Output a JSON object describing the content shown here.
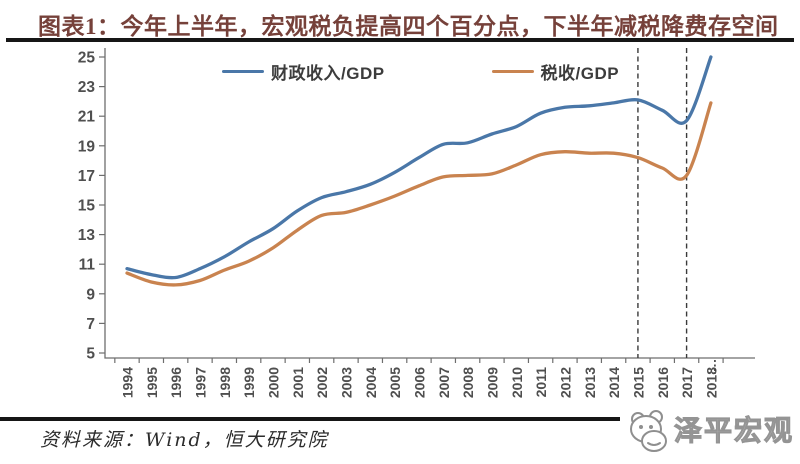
{
  "header": {
    "title": "图表1：今年上半年，宏观税负提高四个百分点，下半年减税降费存空间"
  },
  "footer": {
    "source": "资料来源：Wind，恒大研究院",
    "watermark": "泽平宏观"
  },
  "chart_data": {
    "type": "line",
    "title": "图表1：今年上半年，宏观税负提高四个百分点，下半年减税降费存空间",
    "x": [
      "1994",
      "1995",
      "1996",
      "1997",
      "1998",
      "1999",
      "2000",
      "2001",
      "2002",
      "2003",
      "2004",
      "2005",
      "2006",
      "2007",
      "2008",
      "2009",
      "2010",
      "2011",
      "2012",
      "2013",
      "2014",
      "2015",
      "2016",
      "2017",
      "2018"
    ],
    "series": [
      {
        "name": "财政收入/GDP",
        "color": "#4a77a8",
        "values": [
          10.7,
          10.3,
          10.1,
          10.7,
          11.5,
          12.5,
          13.4,
          14.6,
          15.5,
          15.9,
          16.4,
          17.2,
          18.2,
          19.1,
          19.2,
          19.8,
          20.3,
          21.2,
          21.6,
          21.7,
          21.9,
          22.1,
          21.4,
          20.7,
          25.0
        ]
      },
      {
        "name": "税收/GDP",
        "color": "#c9834f",
        "values": [
          10.4,
          9.8,
          9.6,
          9.9,
          10.6,
          11.2,
          12.1,
          13.3,
          14.3,
          14.5,
          15.0,
          15.6,
          16.3,
          16.9,
          17.0,
          17.1,
          17.7,
          18.4,
          18.6,
          18.5,
          18.5,
          18.2,
          17.5,
          17.0,
          21.9
        ]
      }
    ],
    "xlabel": "",
    "ylabel": "",
    "ylim": [
      5,
      25
    ],
    "yticks": [
      5,
      7,
      9,
      11,
      13,
      15,
      17,
      19,
      21,
      23,
      25
    ],
    "grid": false,
    "legend_position": "top",
    "annotations": {
      "dashed_vlines_x": [
        2015,
        2017
      ],
      "below_axis_dotted_x": 2018
    },
    "axis_color": "#6e6e6e",
    "tick_label_color": "#4f4f4f"
  }
}
